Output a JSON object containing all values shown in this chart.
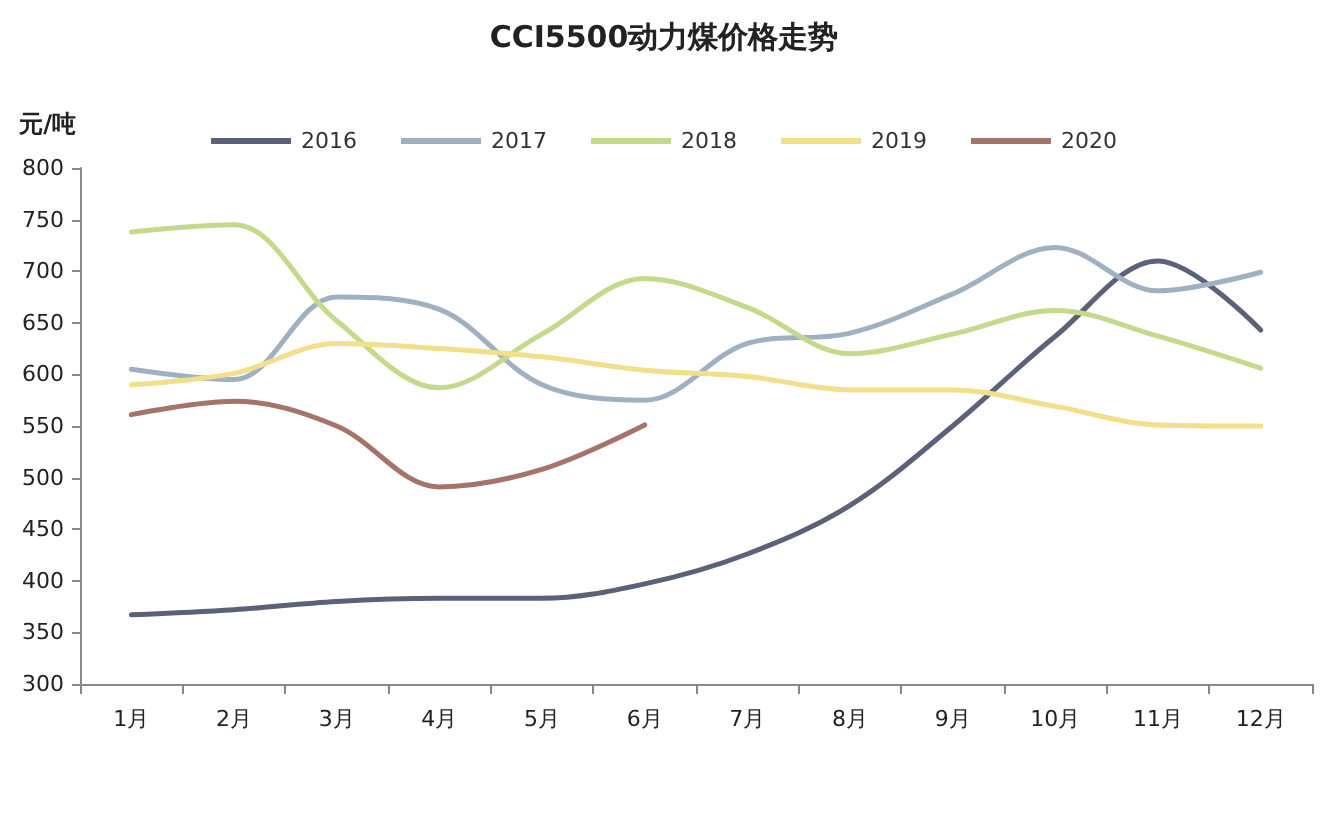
{
  "chart_data": {
    "type": "line",
    "title": "CCI5500动力煤价格走势",
    "ylabel": "元/吨",
    "categories": [
      "1月",
      "2月",
      "3月",
      "4月",
      "5月",
      "6月",
      "7月",
      "8月",
      "9月",
      "10月",
      "11月",
      "12月"
    ],
    "series": [
      {
        "name": "2016",
        "color": "#5b6178",
        "values": [
          367,
          372,
          380,
          383,
          383,
          397,
          426,
          473,
          550,
          637,
          710,
          643
        ]
      },
      {
        "name": "2017",
        "color": "#9fb1c0",
        "values": [
          605,
          595,
          675,
          663,
          590,
          575,
          630,
          640,
          678,
          723,
          681,
          699
        ]
      },
      {
        "name": "2018",
        "color": "#c5d98b",
        "values": [
          738,
          745,
          652,
          587,
          639,
          693,
          665,
          620,
          639,
          662,
          637,
          606
        ]
      },
      {
        "name": "2019",
        "color": "#f2df8c",
        "values": [
          590,
          601,
          630,
          625,
          617,
          604,
          598,
          585,
          585,
          569,
          551,
          550
        ]
      },
      {
        "name": "2020",
        "color": "#a5736a",
        "values": [
          561,
          574,
          550,
          491,
          508,
          551,
          null,
          null,
          null,
          null,
          null,
          null
        ]
      }
    ],
    "ylim": [
      300,
      800
    ],
    "yticks": [
      300,
      350,
      400,
      450,
      500,
      550,
      600,
      650,
      700,
      750,
      800
    ],
    "legend": "top",
    "marker": "none",
    "line_style": "solid"
  }
}
